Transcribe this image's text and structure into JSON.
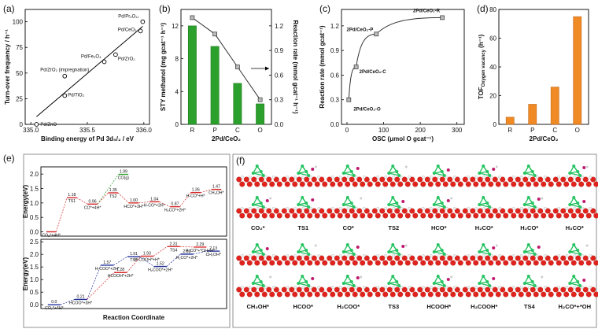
{
  "chart_data": [
    {
      "type": "scatter",
      "panel_label": "(a)",
      "xlabel": "Binding energy of Pd 3d₅/₂ / eV",
      "ylabel": "Turn-over frequency / h⁻¹",
      "x": [
        335.05,
        335.3,
        335.3,
        335.65,
        335.75,
        335.97,
        335.99
      ],
      "values": [
        0,
        28,
        47,
        61,
        68,
        91,
        100
      ],
      "point_labels": [
        "Pd/ZnO",
        "Pd/TiO₂",
        "Pd/ZrO₂ (impregnation)",
        "Pd/Fe₃O₄",
        "Pd/ZrO₂",
        "Pd/CeO₂",
        "Pd/Pr₆O₁₁"
      ],
      "xlim": [
        334.95,
        336.05
      ],
      "xticks": [
        {
          "value": 335,
          "label": "335.0"
        },
        {
          "value": 335.5,
          "label": "335.5"
        },
        {
          "value": 336,
          "label": "336.0"
        }
      ],
      "ylim": [
        0,
        112
      ],
      "yticks": [
        0,
        25,
        50,
        75,
        100
      ],
      "trendline": true,
      "color": "#000000"
    },
    {
      "type": "bar_line",
      "panel_label": "(b)",
      "xlabel": "2Pd/CeO₂",
      "ylabel": "STY methanol (mg gcat⁻¹ h⁻¹)",
      "y2label": "Reaction rate (mmol gcat⁻¹ h⁻¹)",
      "categories": [
        "R",
        "P",
        "C",
        "O"
      ],
      "series": [
        {
          "color": "#2ca02c",
          "values": [
            12,
            9.5,
            5,
            2.5
          ]
        },
        {
          "color": "#333333",
          "axis": "y2",
          "values": [
            1.3,
            1.1,
            0.7,
            0.3
          ]
        }
      ],
      "ylim": [
        0,
        14
      ],
      "yticks": [
        0,
        4,
        8,
        12
      ],
      "y2lim": [
        0,
        1.4
      ],
      "y2ticks": [
        {
          "value": 0,
          "label": "0.0"
        },
        {
          "value": 0.3,
          "label": "0.3"
        },
        {
          "value": 0.6,
          "label": "0.6"
        },
        {
          "value": 0.9,
          "label": "0.9"
        },
        {
          "value": 1.2,
          "label": "1.2"
        }
      ]
    },
    {
      "type": "curve_scatter",
      "panel_label": "(c)",
      "xlabel": "OSC (μmol O gcat⁻¹)",
      "ylabel": "Reaction rate (mmol gcat⁻¹)",
      "x": [
        5,
        25,
        80,
        260
      ],
      "values": [
        0.3,
        0.7,
        1.1,
        1.3
      ],
      "point_labels": [
        "2Pd/CeO₂-O",
        "2Pd/CeO₂-C",
        "2Pd/CeO₂-P",
        "2Pd/CeO₂-R"
      ],
      "xlim": [
        -15,
        320
      ],
      "xticks": [
        0,
        100,
        200,
        300
      ],
      "ylim": [
        0,
        1.4
      ],
      "yticks": [
        {
          "value": 0,
          "label": "0.0"
        },
        {
          "value": 0.3,
          "label": "0.3"
        },
        {
          "value": 0.6,
          "label": "0.6"
        },
        {
          "value": 0.9,
          "label": "0.9"
        },
        {
          "value": 1.2,
          "label": "1.2"
        }
      ],
      "color": "#333333"
    },
    {
      "type": "bar",
      "panel_label": "(d)",
      "xlabel": "2Pd/CeO₂",
      "ylabel": "TOF",
      "ylabel_subscript": "Oxygen vacancy",
      "ylabel_suffix": " (h⁻¹)",
      "categories": [
        "R",
        "P",
        "C",
        "O"
      ],
      "values": [
        5,
        14,
        26,
        75
      ],
      "color": "#f08a24",
      "ylim": [
        0,
        80
      ],
      "yticks": [
        0,
        20,
        40,
        60,
        80
      ]
    },
    {
      "type": "energy",
      "panel_label": "(e)",
      "ylabel": "Energy(eV)",
      "ylim": [
        -0.15,
        2.25
      ],
      "yticks": [
        {
          "value": 0,
          "label": "0.0"
        },
        {
          "value": 0.5,
          "label": "0.5"
        },
        {
          "value": 1,
          "label": "1.0"
        },
        {
          "value": 1.5,
          "label": "1.5"
        },
        {
          "value": 2,
          "label": "2.0"
        }
      ],
      "series": [
        {
          "color": "#d62728",
          "values": [
            0,
            1.18,
            0.96,
            1.35,
            1.0,
            1.04,
            0.87,
            1.36,
            1.47
          ],
          "value_labels": [
            null,
            "1.18",
            "0.96",
            "1.35",
            "1.00",
            "1.04",
            "0.87",
            "1.36",
            "1.47"
          ],
          "state_labels": [
            "CO₂*+4H*",
            "TS1",
            "CO*+4H*",
            "TS2",
            "HCO*+3H*",
            "H-CO*+2H*",
            "H₂CO*+2H*",
            "H-CO*+H*",
            "CH₃OH*"
          ]
        },
        {
          "color": "#2ca02c",
          "branch_from": 2,
          "values": [
            1.99
          ],
          "value_labels": [
            "1.99"
          ],
          "state_labels": [
            "CO(g)"
          ]
        }
      ]
    },
    {
      "type": "energy",
      "ylabel": "Energy(eV)",
      "xlabel": "Reaction Coordinate",
      "ylim": [
        -0.15,
        2.6
      ],
      "yticks": [
        {
          "value": 0,
          "label": "0.0"
        },
        {
          "value": 0.5,
          "label": "0.5"
        },
        {
          "value": 1,
          "label": "1.0"
        },
        {
          "value": 1.5,
          "label": "1.5"
        },
        {
          "value": 2,
          "label": "2.0"
        },
        {
          "value": 2.5,
          "label": "2.5"
        }
      ],
      "series": [
        {
          "color": "#1f2f9a",
          "values": [
            0,
            0.21,
            1.57,
            1.91,
            1.52,
            2.01,
            2.13
          ],
          "value_labels": [
            "0.0",
            "0.21",
            "1.57",
            "1.91",
            "1.52",
            "2.01",
            "2.13"
          ],
          "state_labels": [
            "CO₂*+4H*",
            "HCOO*+3H*",
            "H-COO*+2H*",
            "TS3",
            "H₂COO*+2H*",
            "H₂CO*+2H*",
            "CH₃OH*"
          ]
        },
        {
          "color": "#d62728",
          "branch_from": 1,
          "values": [
            1.28,
            1.93,
            2.31,
            2.29
          ],
          "value_labels": [
            "1.28",
            "1.93",
            "2.31",
            "2.29"
          ],
          "state_labels": [
            "HCOOH*+2H*",
            "H-COOH*+H*",
            "TS4",
            "H₂CO*+*OH+H*"
          ]
        }
      ]
    }
  ],
  "figure_f": {
    "panel_label": "(f)",
    "rows": [
      {
        "labels": [
          "CO₂*",
          "TS1",
          "CO*",
          "TS2",
          "HCO*",
          "H₂CO*",
          "H₂CO*",
          "H₃CO*"
        ],
        "colors": [
          "#000000",
          "#d62728",
          "#d62728",
          "#d62728",
          "#d62728",
          "#d62728",
          "#000000",
          "#000000"
        ]
      },
      {
        "labels": [
          "CH₃OH*",
          "HCOO*",
          "H₂COO*",
          "TS3",
          "HCOOH*",
          "H₂COOH*",
          "TS4",
          "H₂CO*+*OH"
        ],
        "colors": [
          "#000000",
          "#1f2f9a",
          "#1f2f9a",
          "#1f2f9a",
          "#d62728",
          "#d62728",
          "#d62728",
          "#d62728"
        ]
      }
    ]
  }
}
